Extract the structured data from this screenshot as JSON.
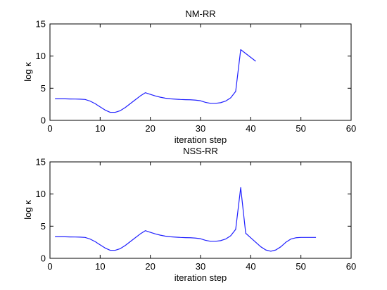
{
  "chart_data": [
    {
      "type": "line",
      "title": "NM-RR",
      "xlabel": "iteration step",
      "ylabel": "log κ",
      "xlim": [
        0,
        60
      ],
      "ylim": [
        0,
        15
      ],
      "xticks": [
        "0",
        "10",
        "20",
        "30",
        "40",
        "50",
        "60"
      ],
      "yticks": [
        "0",
        "5",
        "10",
        "15"
      ],
      "grid": false,
      "series": [
        {
          "color": "#2020ff",
          "x": [
            1,
            2,
            3,
            4,
            5,
            6,
            7,
            8,
            9,
            10,
            11,
            12,
            13,
            14,
            15,
            16,
            17,
            18,
            19,
            20,
            21,
            22,
            23,
            24,
            25,
            26,
            27,
            28,
            29,
            30,
            31,
            32,
            33,
            34,
            35,
            36,
            37,
            38,
            39,
            40,
            41
          ],
          "y": [
            3.35,
            3.35,
            3.35,
            3.33,
            3.32,
            3.3,
            3.25,
            3.0,
            2.6,
            2.1,
            1.6,
            1.25,
            1.25,
            1.5,
            2.0,
            2.6,
            3.2,
            3.8,
            4.3,
            4.05,
            3.8,
            3.6,
            3.45,
            3.35,
            3.3,
            3.25,
            3.22,
            3.2,
            3.15,
            3.05,
            2.8,
            2.65,
            2.65,
            2.75,
            3.0,
            3.5,
            4.5,
            11.0,
            10.4,
            9.8,
            9.2
          ]
        }
      ]
    },
    {
      "type": "line",
      "title": "NSS-RR",
      "xlabel": "iteration step",
      "ylabel": "log κ",
      "xlim": [
        0,
        60
      ],
      "ylim": [
        0,
        15
      ],
      "xticks": [
        "0",
        "10",
        "20",
        "30",
        "40",
        "50",
        "60"
      ],
      "yticks": [
        "0",
        "5",
        "10",
        "15"
      ],
      "grid": false,
      "series": [
        {
          "color": "#2020ff",
          "x": [
            1,
            2,
            3,
            4,
            5,
            6,
            7,
            8,
            9,
            10,
            11,
            12,
            13,
            14,
            15,
            16,
            17,
            18,
            19,
            20,
            21,
            22,
            23,
            24,
            25,
            26,
            27,
            28,
            29,
            30,
            31,
            32,
            33,
            34,
            35,
            36,
            37,
            38,
            39,
            40,
            41,
            42,
            43,
            44,
            45,
            46,
            47,
            48,
            49,
            50,
            51,
            52,
            53
          ],
          "y": [
            3.35,
            3.35,
            3.35,
            3.33,
            3.32,
            3.3,
            3.25,
            3.0,
            2.6,
            2.1,
            1.6,
            1.25,
            1.25,
            1.5,
            2.0,
            2.6,
            3.2,
            3.8,
            4.3,
            4.05,
            3.8,
            3.6,
            3.45,
            3.35,
            3.3,
            3.25,
            3.22,
            3.2,
            3.15,
            3.05,
            2.8,
            2.65,
            2.65,
            2.75,
            3.0,
            3.5,
            4.5,
            11.0,
            3.9,
            3.2,
            2.5,
            1.8,
            1.3,
            1.1,
            1.3,
            1.8,
            2.5,
            3.0,
            3.2,
            3.25,
            3.25,
            3.25,
            3.25
          ]
        }
      ]
    }
  ]
}
